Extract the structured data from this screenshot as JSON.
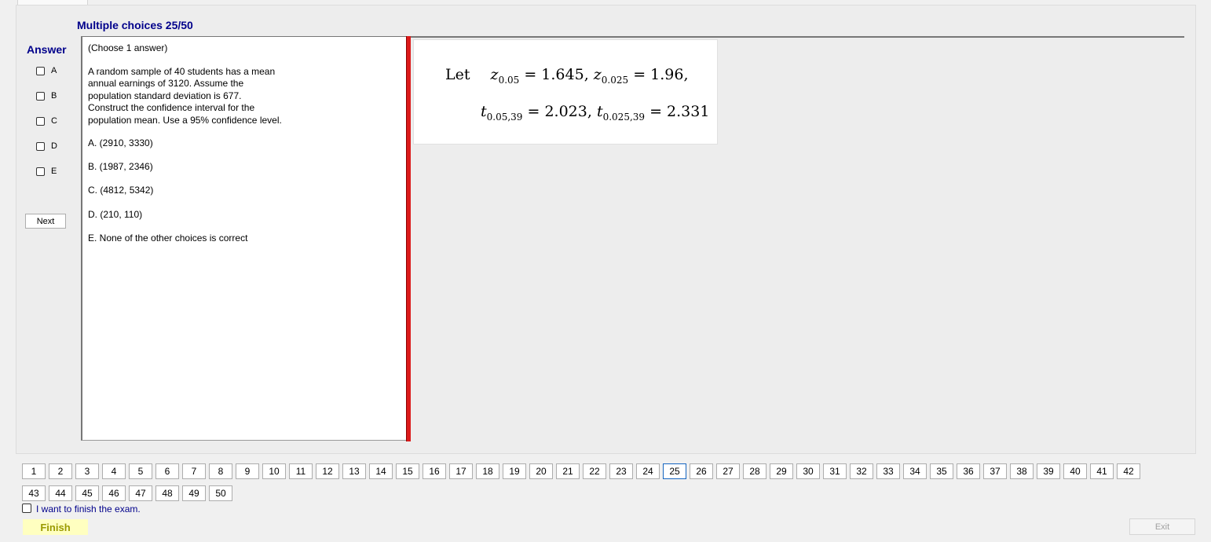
{
  "header": {
    "title": "Multiple choices 25/50"
  },
  "answer_panel": {
    "label": "Answer",
    "options": [
      {
        "letter": "A",
        "checked": false
      },
      {
        "letter": "B",
        "checked": false
      },
      {
        "letter": "C",
        "checked": false
      },
      {
        "letter": "D",
        "checked": false
      },
      {
        "letter": "E",
        "checked": false
      }
    ],
    "next_label": "Next"
  },
  "question": {
    "instruction": "(Choose 1 answer)",
    "body_lines": [
      "A random sample of 40 students has a mean",
      "annual earnings of 3120. Assume the",
      "population standard deviation is 677.",
      "Construct the confidence interval for the",
      "population mean. Use a 95% confidence level."
    ],
    "choices": [
      "A.  (2910, 3330)",
      "B.  (1987, 2346)",
      "C.  (4812, 5342)",
      "D.  (210, 110)",
      "E.  None of the other choices is correct"
    ]
  },
  "formula": {
    "let": "Let",
    "z1_sub": "0.05",
    "z1_val": "1.645",
    "z2_sub": "0.025",
    "z2_val": "1.96",
    "t1_sub": "0.05,39",
    "t1_val": "2.023",
    "t2_sub": "0.025,39",
    "t2_val": "2.331"
  },
  "pagination": {
    "pages": [
      "1",
      "2",
      "3",
      "4",
      "5",
      "6",
      "7",
      "8",
      "9",
      "10",
      "11",
      "12",
      "13",
      "14",
      "15",
      "16",
      "17",
      "18",
      "19",
      "20",
      "21",
      "22",
      "23",
      "24",
      "25",
      "26",
      "27",
      "28",
      "29",
      "30",
      "31",
      "32",
      "33",
      "34",
      "35",
      "36",
      "37",
      "38",
      "39",
      "40",
      "41",
      "42",
      "43",
      "44",
      "45",
      "46",
      "47",
      "48",
      "49",
      "50"
    ],
    "current": "25"
  },
  "footer": {
    "finish_checkbox_label": "I want to finish the exam.",
    "finish_checked": false,
    "finish_label": "Finish",
    "exit_label": "Exit"
  }
}
